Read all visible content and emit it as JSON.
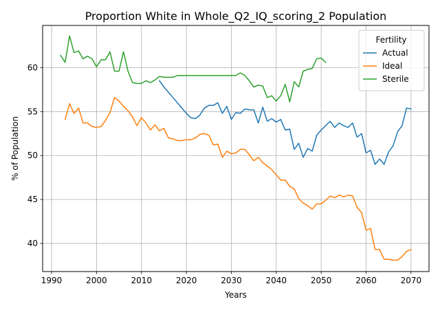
{
  "chart_data": {
    "type": "line",
    "title": "Proportion White in Whole_Q2_IQ_scoring_2 Population",
    "xlabel": "Years",
    "ylabel": "% of Population",
    "xlim": [
      1988,
      2074
    ],
    "ylim": [
      36.8,
      64.8
    ],
    "xticks": [
      1990,
      2000,
      2010,
      2020,
      2030,
      2040,
      2050,
      2060,
      2070
    ],
    "yticks": [
      40,
      45,
      50,
      55,
      60
    ],
    "grid": true,
    "legend": {
      "title": "Fertility",
      "position": "top-right"
    },
    "series": [
      {
        "name": "Actual",
        "color": "#1f77b4",
        "x": [
          2014,
          2015,
          2016,
          2017,
          2018,
          2019,
          2020,
          2021,
          2022,
          2023,
          2024,
          2025,
          2026,
          2027,
          2028,
          2029,
          2030,
          2031,
          2032,
          2033,
          2034,
          2035,
          2036,
          2037,
          2038,
          2039,
          2040,
          2041,
          2042,
          2043,
          2044,
          2045,
          2046,
          2047,
          2048,
          2049,
          2050,
          2051,
          2052,
          2053,
          2054,
          2055,
          2056,
          2057,
          2058,
          2059,
          2060,
          2061,
          2062,
          2063,
          2064,
          2065,
          2066,
          2067,
          2068,
          2069,
          2070
        ],
        "y": [
          58.5,
          57.8,
          57.2,
          56.6,
          56.0,
          55.4,
          54.8,
          54.3,
          54.2,
          54.6,
          55.4,
          55.7,
          55.7,
          56.0,
          54.8,
          55.6,
          54.1,
          54.9,
          54.8,
          55.3,
          55.2,
          55.2,
          53.7,
          55.5,
          53.9,
          54.2,
          53.8,
          54.1,
          52.9,
          53.0,
          50.7,
          51.4,
          49.8,
          50.8,
          50.5,
          52.3,
          52.9,
          53.4,
          53.9,
          53.2,
          53.7,
          53.4,
          53.2,
          53.7,
          52.1,
          52.5,
          50.3,
          50.6,
          49.0,
          49.6,
          49.0,
          50.4,
          51.1,
          52.7,
          53.4,
          55.4,
          55.3
        ]
      },
      {
        "name": "Ideal",
        "color": "#ff7f0e",
        "x": [
          1993,
          1994,
          1995,
          1996,
          1997,
          1998,
          1999,
          2000,
          2001,
          2002,
          2003,
          2004,
          2005,
          2006,
          2007,
          2008,
          2009,
          2010,
          2011,
          2012,
          2013,
          2014,
          2015,
          2016,
          2017,
          2018,
          2019,
          2020,
          2021,
          2022,
          2023,
          2024,
          2025,
          2026,
          2027,
          2028,
          2029,
          2030,
          2031,
          2032,
          2033,
          2034,
          2035,
          2036,
          2037,
          2038,
          2039,
          2040,
          2041,
          2042,
          2043,
          2044,
          2045,
          2046,
          2047,
          2048,
          2049,
          2050,
          2051,
          2052,
          2053,
          2054,
          2055,
          2056,
          2057,
          2058,
          2059,
          2060,
          2061,
          2062,
          2063,
          2064,
          2065,
          2066,
          2067,
          2068,
          2069,
          2070
        ],
        "y": [
          54.1,
          55.9,
          54.8,
          55.4,
          53.7,
          53.7,
          53.3,
          53.2,
          53.3,
          54.0,
          54.9,
          56.6,
          56.2,
          55.6,
          55.1,
          54.4,
          53.4,
          54.3,
          53.7,
          52.9,
          53.5,
          52.8,
          53.1,
          52.0,
          51.9,
          51.7,
          51.7,
          51.8,
          51.8,
          52.0,
          52.4,
          52.5,
          52.3,
          51.2,
          51.3,
          49.8,
          50.5,
          50.2,
          50.3,
          50.7,
          50.7,
          50.1,
          49.4,
          49.8,
          49.2,
          48.8,
          48.4,
          47.8,
          47.2,
          47.2,
          46.5,
          46.2,
          45.1,
          44.6,
          44.3,
          43.9,
          44.5,
          44.5,
          44.9,
          45.4,
          45.2,
          45.5,
          45.3,
          45.5,
          45.4,
          44.1,
          43.5,
          41.5,
          41.7,
          39.3,
          39.3,
          38.2,
          38.2,
          38.1,
          38.1,
          38.5,
          39.1,
          39.3
        ]
      },
      {
        "name": "Sterile",
        "color": "#2ca02c",
        "x": [
          1992,
          1993,
          1994,
          1995,
          1996,
          1997,
          1998,
          1999,
          2000,
          2001,
          2002,
          2003,
          2004,
          2005,
          2006,
          2007,
          2008,
          2009,
          2010,
          2011,
          2012,
          2013,
          2014,
          2015,
          2016,
          2017,
          2018,
          2019,
          2020,
          2021,
          2022,
          2023,
          2024,
          2025,
          2026,
          2027,
          2028,
          2029,
          2030,
          2031,
          2032,
          2033,
          2034,
          2035,
          2036,
          2037,
          2038,
          2039,
          2040,
          2041,
          2042,
          2043,
          2044,
          2045,
          2046,
          2047,
          2048,
          2049,
          2050,
          2051
        ],
        "y": [
          61.4,
          60.6,
          63.6,
          61.7,
          61.9,
          61.0,
          61.3,
          61.0,
          60.1,
          60.9,
          60.9,
          61.8,
          59.6,
          59.6,
          61.8,
          59.6,
          58.3,
          58.2,
          58.2,
          58.5,
          58.3,
          58.6,
          59.0,
          58.9,
          58.9,
          58.9,
          59.1,
          59.1,
          59.1,
          59.1,
          59.1,
          59.1,
          59.1,
          59.1,
          59.1,
          59.1,
          59.1,
          59.1,
          59.1,
          59.1,
          59.4,
          59.1,
          58.5,
          57.8,
          58.0,
          57.9,
          56.6,
          56.8,
          56.2,
          56.8,
          58.1,
          56.1,
          58.4,
          57.8,
          59.6,
          59.8,
          59.9,
          61.0,
          61.1,
          60.6
        ]
      }
    ]
  }
}
